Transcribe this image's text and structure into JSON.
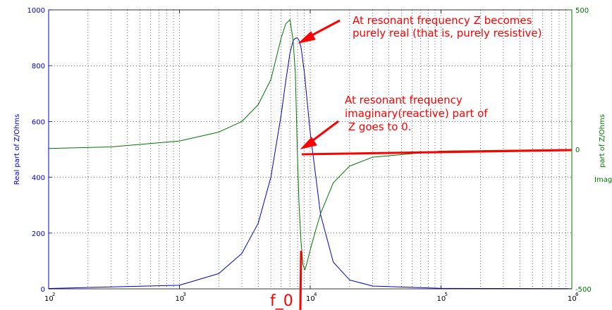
{
  "chart_data": {
    "type": "line",
    "x_scale": "log",
    "xlim": [
      100,
      1000000
    ],
    "x_ticks": [
      {
        "value": 100,
        "base": "10",
        "exp": "2"
      },
      {
        "value": 1000,
        "base": "10",
        "exp": "3"
      },
      {
        "value": 10000,
        "base": "10",
        "exp": "4"
      },
      {
        "value": 100000,
        "base": "10",
        "exp": "5"
      },
      {
        "value": 1000000,
        "base": "10",
        "exp": "6"
      }
    ],
    "grid": "on (dotted, major and minor)",
    "left_axis": {
      "label": "Real part of  Z/Ohms",
      "ylim": [
        0,
        1000
      ],
      "ticks": [
        "0",
        "200",
        "400",
        "600",
        "800",
        "1000"
      ],
      "color": "#0000cc"
    },
    "right_axis": {
      "label_lines": [
        "part of  Z/Ohms",
        "Imag."
      ],
      "ylim": [
        -500,
        500
      ],
      "ticks": [
        "-500",
        "0",
        "500"
      ],
      "color": "#007700"
    },
    "series": [
      {
        "axis": "left",
        "color": "#0000cc",
        "x": [
          100,
          1000,
          2000,
          3000,
          4000,
          5000,
          6000,
          6500,
          7000,
          7400,
          7700,
          7962,
          8200,
          8500,
          9000,
          10000,
          12000,
          15000,
          20000,
          30000,
          100000,
          1000000
        ],
        "y": [
          1.3,
          13,
          55,
          127,
          235,
          400,
          625,
          745,
          845,
          890,
          898,
          900,
          891,
          866,
          780,
          560,
          266,
          96,
          32,
          10,
          1.8,
          0.5
        ]
      },
      {
        "axis": "right",
        "color": "#007700",
        "x": [
          100,
          300,
          1000,
          2000,
          3000,
          4000,
          5000,
          6000,
          6500,
          7000,
          7400,
          7700,
          7962,
          8200,
          8500,
          8800,
          9100,
          9400,
          10000,
          11000,
          12000,
          15000,
          20000,
          30000,
          100000,
          1000000
        ],
        "y": [
          3,
          9,
          30,
          62,
          100,
          160,
          250,
          400,
          450,
          465,
          390,
          270,
          0,
          -190,
          -330,
          -413,
          -432,
          -410,
          -360,
          -290,
          -230,
          -120,
          -60,
          -28,
          -6,
          0
        ]
      }
    ],
    "annotations": [
      {
        "lines": [
          "At resonant frequency Z becomes",
          "purely real (that is, purely resistive)"
        ],
        "color": "#ff0000"
      },
      {
        "lines": [
          "At resonant frequency",
          "imaginary(reactive) part of",
          " Z goes to 0."
        ],
        "color": "#ff0000"
      },
      {
        "text": "f_0",
        "color": "#ff0000"
      }
    ]
  }
}
